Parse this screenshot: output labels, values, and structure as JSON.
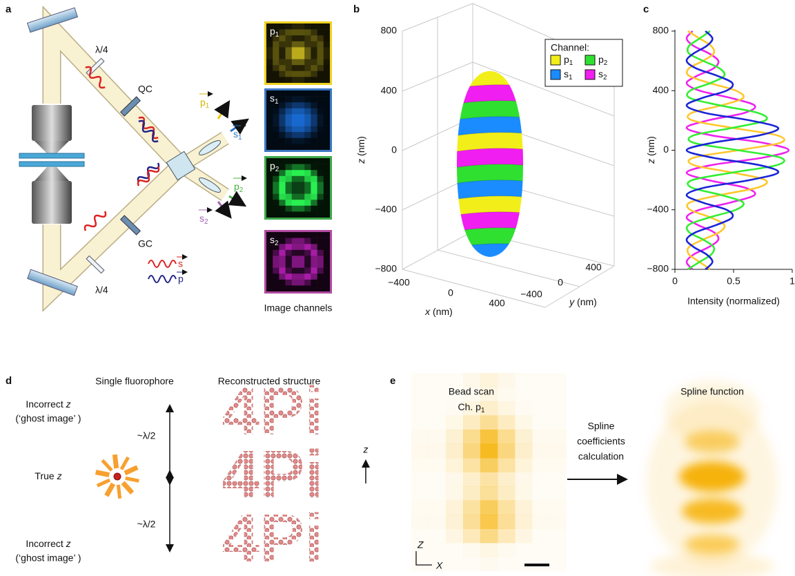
{
  "panels": {
    "a": {
      "label": "a",
      "quarter_wave_top": "λ/4",
      "qc": "QC",
      "gc": "GC",
      "quarter_wave_bottom": "λ/4",
      "outputs": [
        {
          "name": "p",
          "sub": "1"
        },
        {
          "name": "s",
          "sub": "1"
        },
        {
          "name": "p",
          "sub": "2"
        },
        {
          "name": "s",
          "sub": "2"
        }
      ],
      "legend": [
        "s",
        "p"
      ],
      "channels_caption": "Image channels"
    },
    "b": {
      "label": "b",
      "z_label": "z",
      "z_unit": "(nm)",
      "z_ticks": [
        "800",
        "400",
        "0",
        "−400",
        "−800"
      ],
      "x_label": "x",
      "x_unit": "(nm)",
      "x_ticks": [
        "−400",
        "0",
        "400"
      ],
      "y_label": "y",
      "y_unit": "(nm)",
      "y_ticks": [
        "400",
        "0",
        "−400"
      ],
      "legend_title": "Channel:"
    },
    "d": {
      "label": "d",
      "col1": "Single fluorophore",
      "col2": "Reconstructed structure",
      "incorrect_top": {
        "text": "Incorrect",
        "var": "z"
      },
      "ghost_top": "(‘ghost image’ )",
      "half_wave": [
        "~λ/2",
        "~λ/2"
      ],
      "true_z": {
        "text": "True",
        "var": "z"
      },
      "incorrect_bottom": {
        "text": "Incorrect",
        "var": "z"
      },
      "ghost_bottom": "(‘ghost image’ )",
      "structure": "4Pi",
      "axis": "z"
    },
    "e": {
      "label": "e",
      "scan_title": "Bead scan",
      "scan_channel": {
        "text": "Ch.",
        "name": "p",
        "sub": "1"
      },
      "arrow_text": [
        "Spline",
        "coefficients",
        "calculation"
      ],
      "spline_title": "Spline function",
      "axes": [
        "Z",
        "X"
      ]
    }
  },
  "chart_data": {
    "type": "line",
    "label": "c",
    "x_label": "Intensity (normalized)",
    "y_label": "z",
    "y_unit": "(nm)",
    "y": [
      -800,
      -750,
      -700,
      -650,
      -600,
      -550,
      -500,
      -450,
      -400,
      -350,
      -300,
      -250,
      -200,
      -150,
      -100,
      -50,
      0,
      50,
      100,
      150,
      200,
      250,
      300,
      350,
      400,
      450,
      500,
      550,
      600,
      650,
      700,
      750,
      800
    ],
    "series": [
      {
        "color": "#ee22ee",
        "values": [
          0.15,
          0.1,
          0.16,
          0.29,
          0.37,
          0.33,
          0.19,
          0.1,
          0.21,
          0.48,
          0.68,
          0.59,
          0.28,
          0.1,
          0.31,
          0.75,
          0.97,
          0.75,
          0.31,
          0.1,
          0.28,
          0.59,
          0.68,
          0.48,
          0.21,
          0.1,
          0.19,
          0.33,
          0.37,
          0.29,
          0.16,
          0.1,
          0.15
        ]
      },
      {
        "color": "#ffc72c",
        "values": [
          0.3,
          0.21,
          0.12,
          0.12,
          0.24,
          0.38,
          0.42,
          0.3,
          0.13,
          0.13,
          0.39,
          0.71,
          0.77,
          0.49,
          0.16,
          0.16,
          0.54,
          0.9,
          0.87,
          0.49,
          0.15,
          0.14,
          0.39,
          0.58,
          0.52,
          0.3,
          0.12,
          0.12,
          0.24,
          0.33,
          0.31,
          0.21,
          0.11
        ]
      },
      {
        "color": "#33ee33",
        "values": [
          0.11,
          0.21,
          0.31,
          0.33,
          0.24,
          0.12,
          0.12,
          0.3,
          0.52,
          0.58,
          0.39,
          0.14,
          0.15,
          0.49,
          0.87,
          0.9,
          0.54,
          0.16,
          0.16,
          0.49,
          0.77,
          0.71,
          0.39,
          0.13,
          0.13,
          0.3,
          0.42,
          0.38,
          0.24,
          0.12,
          0.12,
          0.21,
          0.3
        ]
      },
      {
        "color": "#1a24d6",
        "values": [
          0.26,
          0.32,
          0.27,
          0.16,
          0.1,
          0.18,
          0.36,
          0.49,
          0.44,
          0.23,
          0.1,
          0.26,
          0.64,
          0.88,
          0.72,
          0.32,
          0.1,
          0.32,
          0.72,
          0.88,
          0.64,
          0.26,
          0.1,
          0.23,
          0.44,
          0.49,
          0.36,
          0.18,
          0.1,
          0.16,
          0.27,
          0.32,
          0.26
        ]
      }
    ],
    "xlim": [
      0,
      1
    ],
    "xticks": [
      0,
      0.5,
      1
    ],
    "ylim": [
      -800,
      800
    ],
    "yticks": [
      {
        "value": -800,
        "label": "−800"
      },
      {
        "value": -400,
        "label": "−400"
      },
      {
        "value": 0,
        "label": "0"
      },
      {
        "value": 400,
        "label": "400"
      },
      {
        "value": 800,
        "label": "800"
      }
    ]
  }
}
